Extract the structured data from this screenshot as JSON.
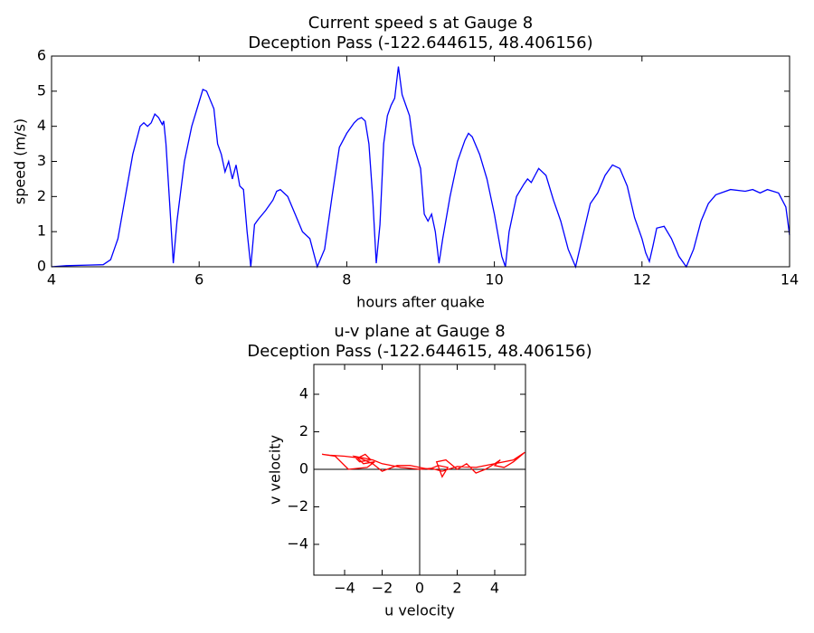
{
  "chart_data": [
    {
      "type": "line",
      "title": "Current speed s at Gauge 8",
      "subtitle": "Deception Pass  (-122.644615, 48.406156)",
      "x_label": "hours after quake",
      "y_label": "speed (m/s)",
      "color": "#0000ff",
      "xlim": [
        4,
        14
      ],
      "xticks": [
        4,
        6,
        8,
        10,
        12,
        14
      ],
      "ylim": [
        0,
        6
      ],
      "yticks": [
        0,
        1,
        2,
        3,
        4,
        5,
        6
      ],
      "x": [
        4.0,
        4.2,
        4.5,
        4.7,
        4.8,
        4.9,
        5.0,
        5.1,
        5.2,
        5.25,
        5.3,
        5.35,
        5.4,
        5.45,
        5.5,
        5.52,
        5.55,
        5.6,
        5.65,
        5.7,
        5.8,
        5.9,
        6.0,
        6.05,
        6.1,
        6.2,
        6.25,
        6.3,
        6.35,
        6.4,
        6.45,
        6.5,
        6.55,
        6.6,
        6.65,
        6.7,
        6.75,
        6.8,
        6.9,
        7.0,
        7.05,
        7.1,
        7.2,
        7.3,
        7.4,
        7.5,
        7.6,
        7.7,
        7.8,
        7.9,
        8.0,
        8.1,
        8.15,
        8.2,
        8.25,
        8.3,
        8.35,
        8.4,
        8.45,
        8.5,
        8.55,
        8.6,
        8.65,
        8.7,
        8.75,
        8.8,
        8.85,
        8.9,
        9.0,
        9.05,
        9.1,
        9.15,
        9.2,
        9.25,
        9.3,
        9.4,
        9.5,
        9.6,
        9.65,
        9.7,
        9.8,
        9.9,
        10.0,
        10.1,
        10.15,
        10.2,
        10.3,
        10.4,
        10.45,
        10.5,
        10.55,
        10.6,
        10.7,
        10.8,
        10.9,
        11.0,
        11.1,
        11.2,
        11.3,
        11.4,
        11.5,
        11.6,
        11.7,
        11.8,
        11.9,
        12.0,
        12.05,
        12.1,
        12.15,
        12.2,
        12.3,
        12.4,
        12.5,
        12.6,
        12.7,
        12.8,
        12.9,
        13.0,
        13.2,
        13.4,
        13.5,
        13.6,
        13.7,
        13.85,
        13.95,
        14.0
      ],
      "values": [
        0,
        0.03,
        0.05,
        0.06,
        0.2,
        0.8,
        2.0,
        3.2,
        4.0,
        4.1,
        4.0,
        4.1,
        4.35,
        4.25,
        4.05,
        4.15,
        3.5,
        1.8,
        0.1,
        1.3,
        3.0,
        4.0,
        4.7,
        5.05,
        5.0,
        4.5,
        3.5,
        3.2,
        2.7,
        3.0,
        2.5,
        2.9,
        2.3,
        2.2,
        1.0,
        0.0,
        1.2,
        1.35,
        1.6,
        1.9,
        2.15,
        2.2,
        2.0,
        1.5,
        1.0,
        0.8,
        0.0,
        0.5,
        2.0,
        3.4,
        3.8,
        4.1,
        4.2,
        4.25,
        4.15,
        3.5,
        2.0,
        0.1,
        1.2,
        3.5,
        4.3,
        4.6,
        4.8,
        5.7,
        4.9,
        4.6,
        4.3,
        3.5,
        2.8,
        1.5,
        1.3,
        1.5,
        1.0,
        0.1,
        0.8,
        2.0,
        3.0,
        3.6,
        3.8,
        3.7,
        3.2,
        2.5,
        1.5,
        0.3,
        0.0,
        1.0,
        2.0,
        2.35,
        2.5,
        2.4,
        2.6,
        2.8,
        2.6,
        1.9,
        1.3,
        0.5,
        0.0,
        0.9,
        1.8,
        2.1,
        2.6,
        2.9,
        2.8,
        2.3,
        1.4,
        0.8,
        0.4,
        0.15,
        0.6,
        1.1,
        1.15,
        0.8,
        0.3,
        0.0,
        0.5,
        1.3,
        1.8,
        2.05,
        2.2,
        2.15,
        2.2,
        2.1,
        2.2,
        2.1,
        1.7,
        0.9
      ]
    },
    {
      "type": "line",
      "title": "u-v plane at Gauge 8",
      "subtitle": "Deception Pass  (-122.644615, 48.406156)",
      "x_label": "u velocity",
      "y_label": "v velocity",
      "color": "#ff0000",
      "zero_lines": true,
      "xlim": [
        -5.64,
        5.64
      ],
      "xticks": [
        {
          "value": -4,
          "label": "−4"
        },
        {
          "value": -2,
          "label": "−2"
        },
        0,
        2,
        4
      ],
      "ylim": [
        -5.64,
        5.59
      ],
      "yticks": [
        {
          "value": -4,
          "label": "−4"
        },
        {
          "value": -2,
          "label": "−2"
        },
        0,
        2,
        4
      ],
      "x": [
        0,
        -0.5,
        -1,
        -1.5,
        -2,
        -2.5,
        -3,
        -3.5,
        -3.2,
        -2.6,
        -2.9,
        -3.3,
        -3.0,
        -2.4,
        -2.8,
        -3.8,
        -4.5,
        -5.2,
        -4.8,
        -4.0,
        -3.2,
        -2.5,
        -2.0,
        -1.2,
        -0.5,
        0,
        0.5,
        1.0,
        1.5,
        1.2,
        0.9,
        1.4,
        2.0,
        2.5,
        3.0,
        3.5,
        4.0,
        4.3,
        4.0,
        4.5,
        5.0,
        5.6,
        5.0,
        4.0,
        3.0,
        2.0,
        1.2,
        0.6,
        0
      ],
      "values": [
        0,
        0.05,
        0.1,
        0.2,
        0.3,
        0.5,
        0.6,
        0.7,
        0.4,
        0.5,
        0.8,
        0.6,
        0.3,
        0.4,
        0.1,
        0.0,
        0.7,
        0.8,
        0.75,
        0.7,
        0.6,
        0.3,
        -0.1,
        0.2,
        0.2,
        0.1,
        0.0,
        0.2,
        0.1,
        -0.4,
        0.4,
        0.5,
        0.0,
        0.3,
        -0.2,
        0.0,
        0.3,
        0.5,
        0.2,
        0.1,
        0.4,
        0.9,
        0.5,
        0.3,
        0.1,
        0.15,
        -0.1,
        0.05,
        0
      ]
    }
  ]
}
